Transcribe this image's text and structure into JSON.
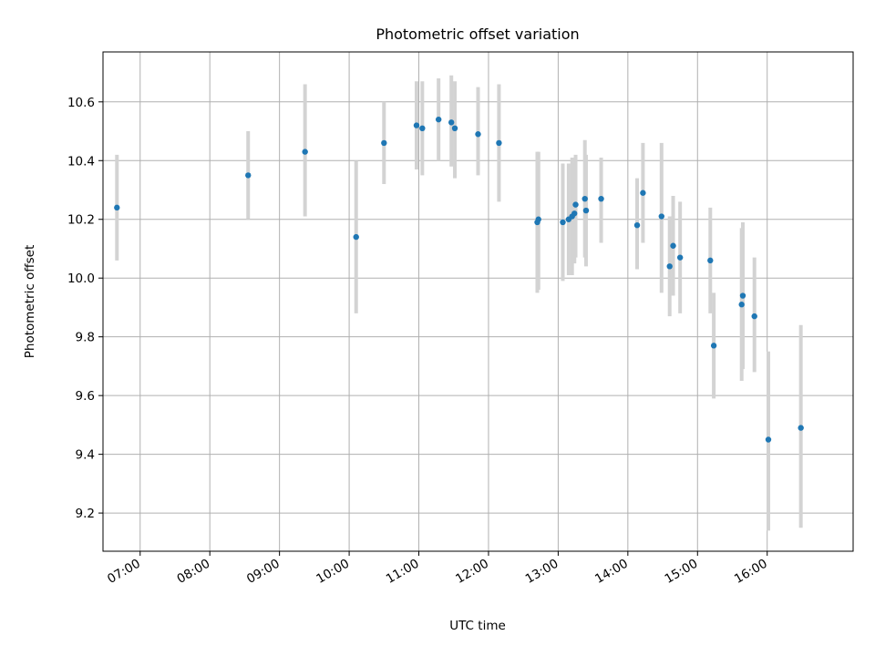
{
  "chart_data": {
    "type": "scatter",
    "title": "Photometric offset variation",
    "xlabel": "UTC time",
    "ylabel": "Photometric offset",
    "grid": true,
    "xlim": [
      "06:28",
      "17:14"
    ],
    "ylim": [
      9.07,
      10.77
    ],
    "x_ticks": [
      "07:00",
      "08:00",
      "09:00",
      "10:00",
      "11:00",
      "12:00",
      "13:00",
      "14:00",
      "15:00",
      "16:00"
    ],
    "y_ticks": [
      "9.2",
      "9.4",
      "9.6",
      "9.8",
      "10.0",
      "10.2",
      "10.4",
      "10.6"
    ],
    "point_color": "#1f77b4",
    "errorbar_color": "#d3d3d3",
    "series": [
      {
        "points": [
          {
            "x": "06:40",
            "y": 10.24,
            "ylo": 10.06,
            "yhi": 10.42
          },
          {
            "x": "08:33",
            "y": 10.35,
            "ylo": 10.2,
            "yhi": 10.5
          },
          {
            "x": "09:22",
            "y": 10.43,
            "ylo": 10.21,
            "yhi": 10.66
          },
          {
            "x": "10:06",
            "y": 10.14,
            "ylo": 9.88,
            "yhi": 10.4
          },
          {
            "x": "10:30",
            "y": 10.46,
            "ylo": 10.32,
            "yhi": 10.6
          },
          {
            "x": "10:58",
            "y": 10.52,
            "ylo": 10.37,
            "yhi": 10.67
          },
          {
            "x": "11:03",
            "y": 10.51,
            "ylo": 10.35,
            "yhi": 10.67
          },
          {
            "x": "11:17",
            "y": 10.54,
            "ylo": 10.4,
            "yhi": 10.68
          },
          {
            "x": "11:28",
            "y": 10.53,
            "ylo": 10.38,
            "yhi": 10.69
          },
          {
            "x": "11:31",
            "y": 10.51,
            "ylo": 10.34,
            "yhi": 10.67
          },
          {
            "x": "11:51",
            "y": 10.49,
            "ylo": 10.35,
            "yhi": 10.65
          },
          {
            "x": "12:09",
            "y": 10.46,
            "ylo": 10.26,
            "yhi": 10.66
          },
          {
            "x": "12:42",
            "y": 10.19,
            "ylo": 9.95,
            "yhi": 10.43
          },
          {
            "x": "12:43",
            "y": 10.2,
            "ylo": 9.96,
            "yhi": 10.43
          },
          {
            "x": "13:04",
            "y": 10.19,
            "ylo": 9.99,
            "yhi": 10.39
          },
          {
            "x": "13:09",
            "y": 10.2,
            "ylo": 10.01,
            "yhi": 10.39
          },
          {
            "x": "13:12",
            "y": 10.21,
            "ylo": 10.01,
            "yhi": 10.41
          },
          {
            "x": "13:14",
            "y": 10.22,
            "ylo": 10.05,
            "yhi": 10.39
          },
          {
            "x": "13:15",
            "y": 10.25,
            "ylo": 10.07,
            "yhi": 10.42
          },
          {
            "x": "13:23",
            "y": 10.27,
            "ylo": 10.07,
            "yhi": 10.47
          },
          {
            "x": "13:24",
            "y": 10.23,
            "ylo": 10.04,
            "yhi": 10.42
          },
          {
            "x": "13:37",
            "y": 10.27,
            "ylo": 10.12,
            "yhi": 10.41
          },
          {
            "x": "14:08",
            "y": 10.18,
            "ylo": 10.03,
            "yhi": 10.34
          },
          {
            "x": "14:13",
            "y": 10.29,
            "ylo": 10.12,
            "yhi": 10.46
          },
          {
            "x": "14:29",
            "y": 10.21,
            "ylo": 9.95,
            "yhi": 10.46
          },
          {
            "x": "14:36",
            "y": 10.04,
            "ylo": 9.87,
            "yhi": 10.21
          },
          {
            "x": "14:39",
            "y": 10.11,
            "ylo": 9.94,
            "yhi": 10.28
          },
          {
            "x": "14:45",
            "y": 10.07,
            "ylo": 9.88,
            "yhi": 10.26
          },
          {
            "x": "15:11",
            "y": 10.06,
            "ylo": 9.88,
            "yhi": 10.24
          },
          {
            "x": "15:14",
            "y": 9.77,
            "ylo": 9.59,
            "yhi": 9.95
          },
          {
            "x": "15:38",
            "y": 9.91,
            "ylo": 9.65,
            "yhi": 10.17
          },
          {
            "x": "15:39",
            "y": 9.94,
            "ylo": 9.69,
            "yhi": 10.19
          },
          {
            "x": "15:49",
            "y": 9.87,
            "ylo": 9.68,
            "yhi": 10.07
          },
          {
            "x": "16:01",
            "y": 9.45,
            "ylo": 9.14,
            "yhi": 9.75
          },
          {
            "x": "16:29",
            "y": 9.49,
            "ylo": 9.15,
            "yhi": 9.84
          }
        ]
      }
    ]
  }
}
